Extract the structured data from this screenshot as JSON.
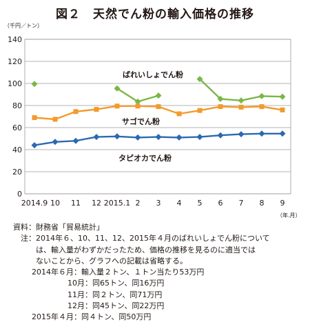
{
  "title": "図２　天然でん粉の輸入価格の推移",
  "chart_data": {
    "type": "line",
    "ylabel": "（千円／トン）",
    "xunit": "（年.月）",
    "ylim": [
      0,
      140
    ],
    "yticks": [
      0,
      20,
      40,
      60,
      80,
      100,
      120,
      140
    ],
    "categories": [
      "2014.9",
      "10",
      "11",
      "12",
      "2015.1",
      "2",
      "3",
      "4",
      "5",
      "6",
      "7",
      "8",
      "9"
    ],
    "grid": true,
    "series": [
      {
        "name": "ばれいしょでん粉",
        "color": "#7ab648",
        "marker": "diamond",
        "values": [
          99.5,
          null,
          null,
          null,
          95.5,
          83.5,
          89,
          null,
          104,
          86,
          84.5,
          88.5,
          88
        ]
      },
      {
        "name": "サゴでん粉",
        "color": "#f39a2b",
        "marker": "square",
        "values": [
          69,
          67.5,
          74.5,
          76.5,
          79.5,
          79.5,
          79,
          72.5,
          75.5,
          79,
          78.5,
          79,
          76
        ]
      },
      {
        "name": "タピオカでん粉",
        "color": "#2a6ab0",
        "marker": "diamond",
        "values": [
          44,
          47,
          48,
          51.5,
          52,
          51,
          51.5,
          51,
          51.5,
          53,
          54,
          54.5,
          54.5
        ]
      }
    ]
  },
  "notes": {
    "source_label": "資料：",
    "source_text": "財務省「貿易統計」",
    "note_label": "注：",
    "note_lines": [
      "2014年６、10、11、12、2015年４月のばれいしょでん粉について",
      "は、輸入量がわずかだったため、価格の推移を見るのに適当では",
      "ないことから、グラフへの記載は省略する。"
    ],
    "details": [
      {
        "month": "2014年６月：",
        "text": "輸入量２トン、１トン当たり53万円"
      },
      {
        "month": "10月：",
        "text": "同65トン、同16万円"
      },
      {
        "month": "11月：",
        "text": "同２トン、同71万円"
      },
      {
        "month": "12月：",
        "text": "同45トン、同22万円"
      },
      {
        "month": "2015年４月：",
        "text": "同４トン、同50万円"
      }
    ]
  }
}
